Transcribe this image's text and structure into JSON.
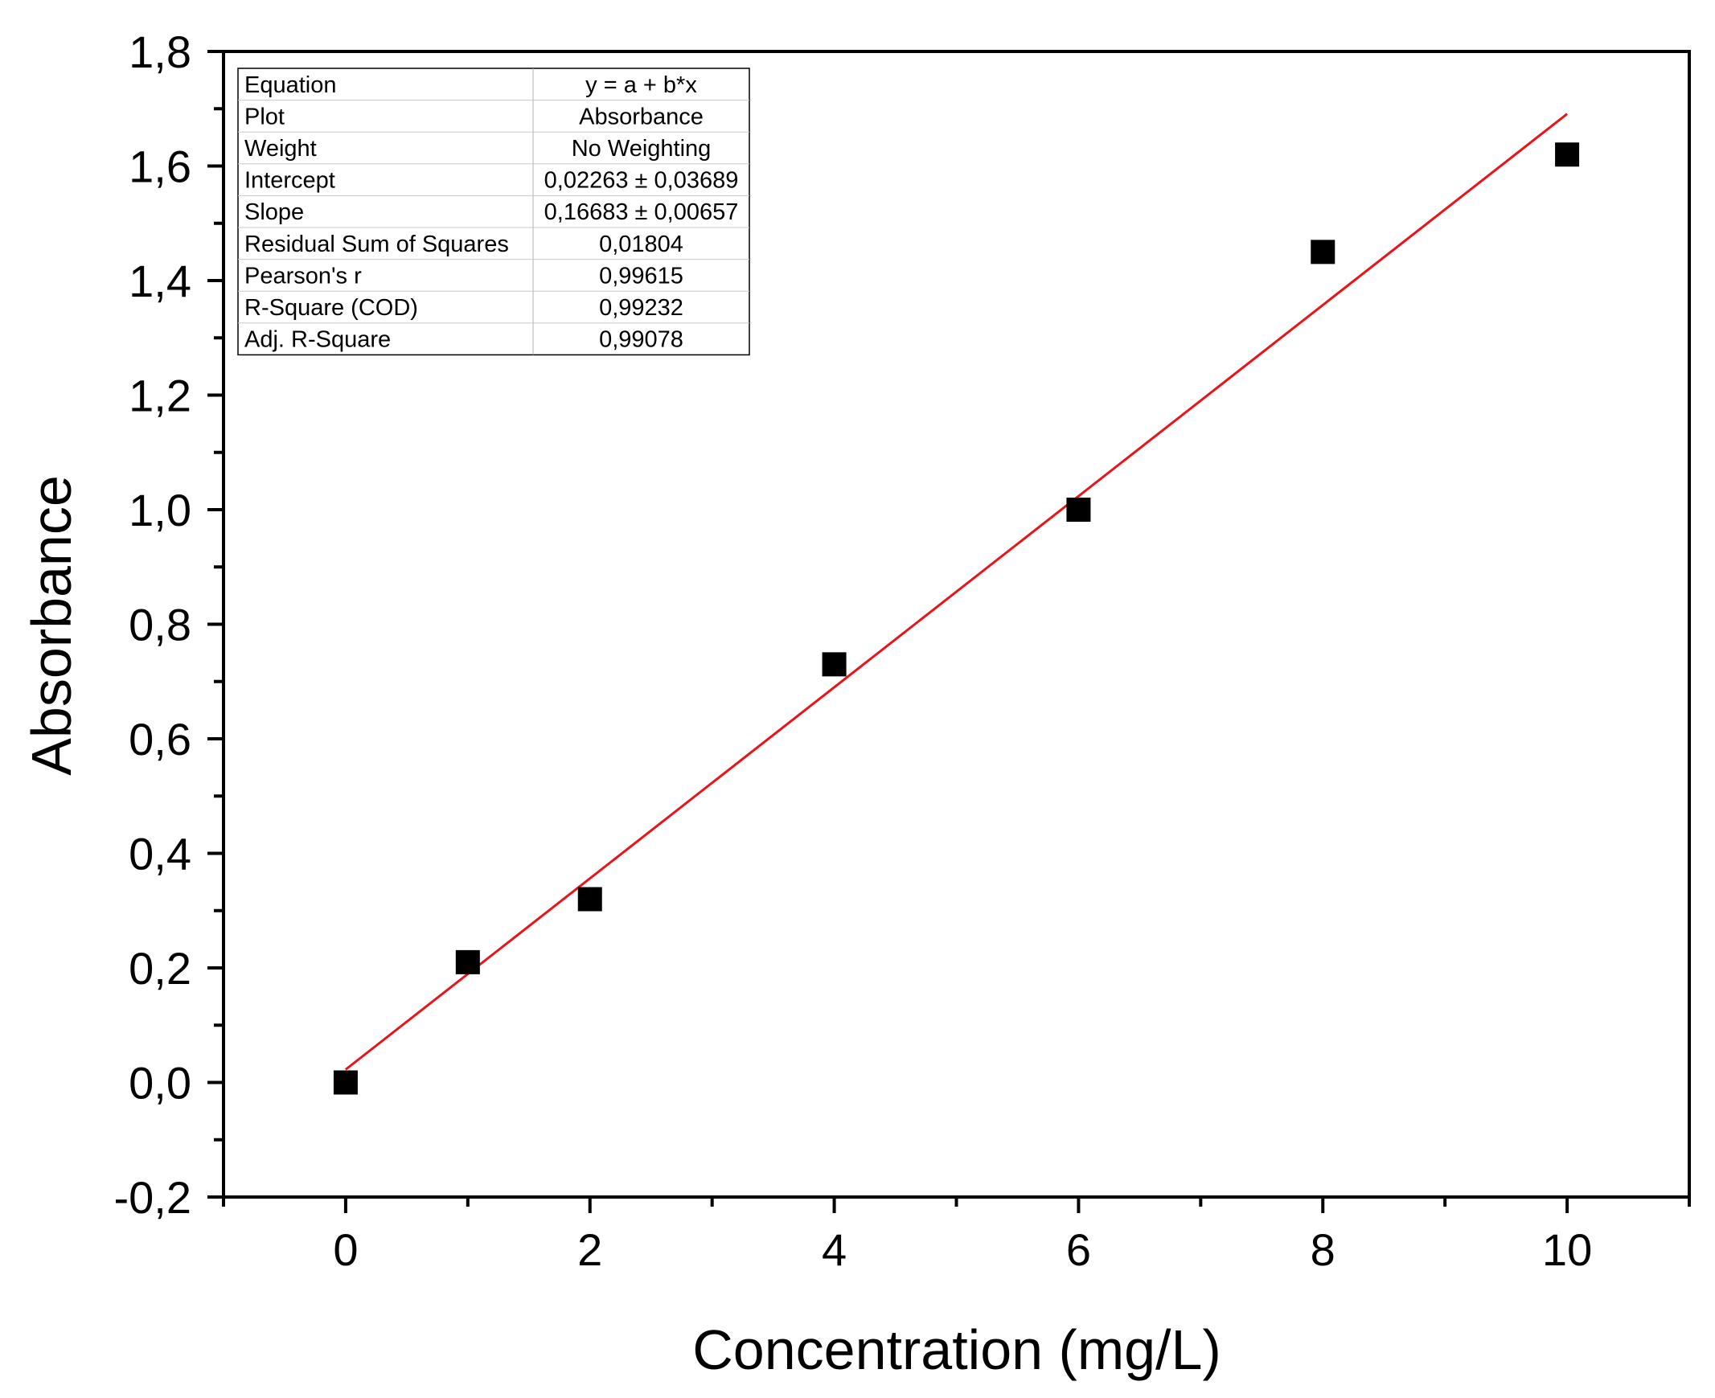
{
  "chart_data": {
    "type": "scatter",
    "xlabel": "Concentration (mg/L)",
    "ylabel": "Absorbance",
    "xlim": [
      -1,
      11
    ],
    "ylim": [
      -0.2,
      1.8
    ],
    "x_ticks": [
      0,
      2,
      4,
      6,
      8,
      10
    ],
    "x_tick_labels": [
      "0",
      "2",
      "4",
      "6",
      "8",
      "10"
    ],
    "x_minor_ticks": [
      -1,
      1,
      3,
      5,
      7,
      9,
      11
    ],
    "y_ticks": [
      -0.2,
      0.0,
      0.2,
      0.4,
      0.6,
      0.8,
      1.0,
      1.2,
      1.4,
      1.6,
      1.8
    ],
    "y_tick_labels": [
      "-0,2",
      "0,0",
      "0,2",
      "0,4",
      "0,6",
      "0,8",
      "1,0",
      "1,2",
      "1,4",
      "1,6",
      "1,8"
    ],
    "y_minor_ticks": [
      -0.1,
      0.1,
      0.3,
      0.5,
      0.7,
      0.9,
      1.1,
      1.3,
      1.5,
      1.7
    ],
    "series": [
      {
        "name": "Absorbance",
        "kind": "scatter",
        "marker": "square",
        "color": "#000000",
        "x": [
          0,
          1,
          2,
          4,
          6,
          8,
          10
        ],
        "y": [
          0.0,
          0.21,
          0.32,
          0.73,
          1.0,
          1.45,
          1.62
        ]
      },
      {
        "name": "Linear Fit",
        "kind": "line",
        "color": "#e8141c",
        "intercept": 0.02263,
        "slope": 0.16683,
        "x_range": [
          0,
          10
        ]
      }
    ],
    "stats_table": {
      "legend_placement": "top-left",
      "rows": [
        {
          "label": "Equation",
          "value": "y = a + b*x"
        },
        {
          "label": "Plot",
          "value": "Absorbance"
        },
        {
          "label": "Weight",
          "value": "No Weighting"
        },
        {
          "label": "Intercept",
          "value": "0,02263 ± 0,03689"
        },
        {
          "label": "Slope",
          "value": "0,16683 ± 0,00657"
        },
        {
          "label": "Residual Sum of Squares",
          "value": "0,01804"
        },
        {
          "label": "Pearson's r",
          "value": "0,99615"
        },
        {
          "label": "R-Square (COD)",
          "value": "0,99232"
        },
        {
          "label": "Adj. R-Square",
          "value": "0,99078"
        }
      ]
    }
  }
}
